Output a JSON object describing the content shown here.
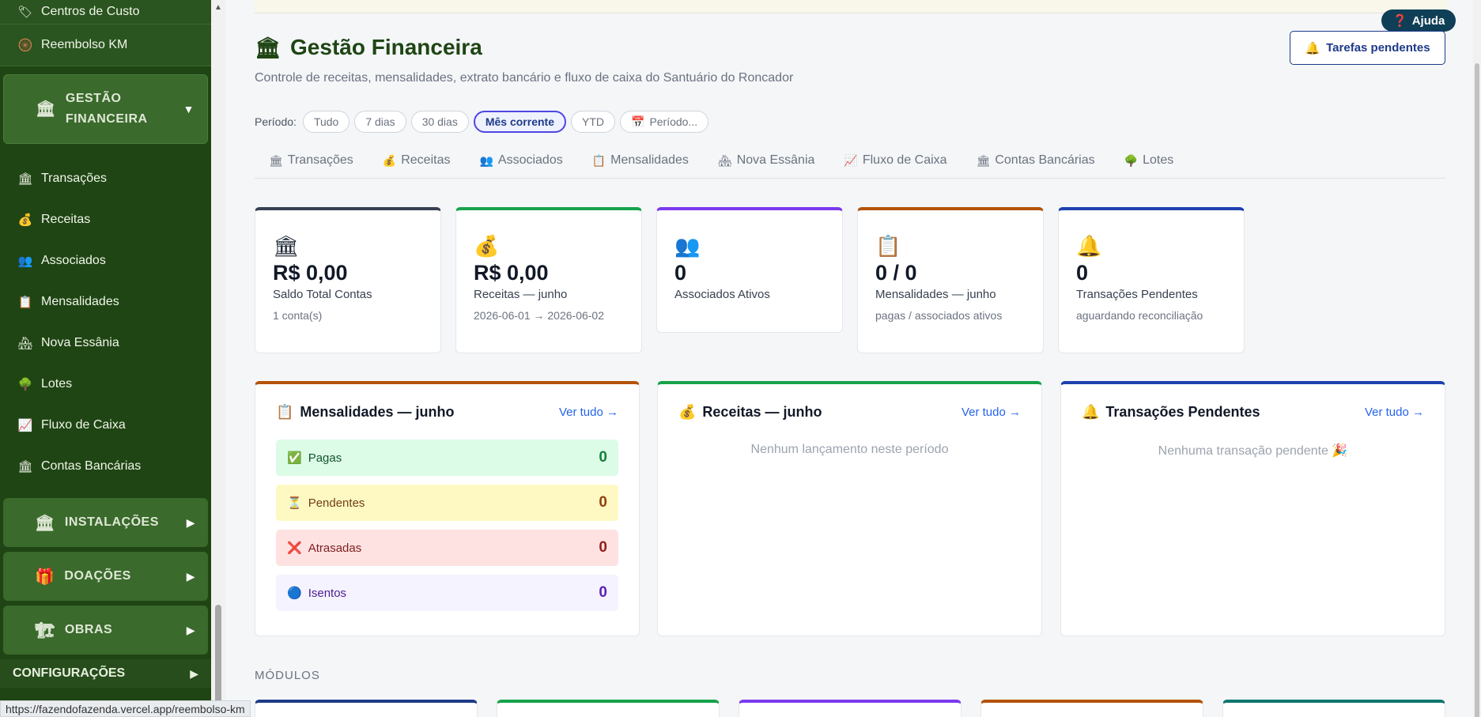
{
  "sidebar": {
    "top_items": [
      {
        "icon": "🏷",
        "label": "Centros de Custo"
      },
      {
        "icon": "🛞",
        "label": "Reembolso KM"
      }
    ],
    "group_gf": {
      "icon": "🏛",
      "label_line1": "GESTÃO",
      "label_line2": "FINANCEIRA",
      "arrow": "▼"
    },
    "items": [
      {
        "icon": "🏛",
        "label": "Transações"
      },
      {
        "icon": "💰",
        "label": "Receitas"
      },
      {
        "icon": "👥",
        "label": "Associados"
      },
      {
        "icon": "📋",
        "label": "Mensalidades"
      },
      {
        "icon": "🏘",
        "label": "Nova Essânia"
      },
      {
        "icon": "🌳",
        "label": "Lotes"
      },
      {
        "icon": "📈",
        "label": "Fluxo de Caixa"
      },
      {
        "icon": "🏛",
        "label": "Contas Bancárias"
      }
    ],
    "groups": [
      {
        "icon": "🏛",
        "label": "INSTALAÇÕES",
        "arrow": "▶"
      },
      {
        "icon": "🎁",
        "label": "DOAÇÕES",
        "arrow": "▶"
      },
      {
        "icon": "🏗",
        "label": "OBRAS",
        "arrow": "▶"
      }
    ],
    "config": {
      "label": "CONFIGURAÇÕES",
      "arrow": "▶"
    }
  },
  "status_url": "https://fazendofazenda.vercel.app/reembolso-km",
  "help": {
    "icon": "❓",
    "label": "Ajuda"
  },
  "header": {
    "icon": "🏛",
    "title": "Gestão Financeira",
    "subtitle": "Controle de receitas, mensalidades, extrato bancário e fluxo de caixa do Santuário do Roncador",
    "tasks_icon": "🔔",
    "tasks_label": "Tarefas pendentes"
  },
  "period": {
    "label": "Período:",
    "options": [
      "Tudo",
      "7 dias",
      "30 dias",
      "Mês corrente",
      "YTD"
    ],
    "active": "Mês corrente",
    "custom_icon": "📅",
    "custom_label": "Período..."
  },
  "tabs": [
    {
      "icon": "🏛",
      "label": "Transações"
    },
    {
      "icon": "💰",
      "label": "Receitas"
    },
    {
      "icon": "👥",
      "label": "Associados"
    },
    {
      "icon": "📋",
      "label": "Mensalidades"
    },
    {
      "icon": "🏘",
      "label": "Nova Essânia"
    },
    {
      "icon": "📈",
      "label": "Fluxo de Caixa"
    },
    {
      "icon": "🏛",
      "label": "Contas Bancárias"
    },
    {
      "icon": "🌳",
      "label": "Lotes"
    }
  ],
  "kpis": [
    {
      "icon": "🏛",
      "value": "R$ 0,00",
      "label": "Saldo Total Contas",
      "sub": "1 conta(s)",
      "color": "#374151"
    },
    {
      "icon": "💰",
      "value": "R$ 0,00",
      "label": "Receitas — junho",
      "sub": "2026-06-01 → 2026-06-02",
      "color": "#16a34a"
    },
    {
      "icon": "👥",
      "value": "0",
      "label": "Associados Ativos",
      "sub": "",
      "color": "#7c3aed"
    },
    {
      "icon": "📋",
      "value": "0 / 0",
      "label": "Mensalidades — junho",
      "sub": "pagas / associados ativos",
      "color": "#b45309"
    },
    {
      "icon": "🔔",
      "value": "0",
      "label": "Transações Pendentes",
      "sub": "aguardando reconciliação",
      "color": "#1e40af"
    }
  ],
  "panels": {
    "mensalidades": {
      "icon": "📋",
      "title": "Mensalidades — junho",
      "link": "Ver tudo →",
      "color": "#b45309",
      "rows": [
        {
          "icon": "✅",
          "label": "Pagas",
          "value": "0",
          "bg": "#dcfce7",
          "fg": "#14532d",
          "vfg": "#15803d"
        },
        {
          "icon": "⏳",
          "label": "Pendentes",
          "value": "0",
          "bg": "#fef9c3",
          "fg": "#713f12",
          "vfg": "#92400e"
        },
        {
          "icon": "❌",
          "label": "Atrasadas",
          "value": "0",
          "bg": "#fee2e2",
          "fg": "#7f1d1d",
          "vfg": "#991b1b"
        },
        {
          "icon": "🔵",
          "label": "Isentos",
          "value": "0",
          "bg": "#f5f3ff",
          "fg": "#4c1d95",
          "vfg": "#5b21b6"
        }
      ]
    },
    "receitas": {
      "icon": "💰",
      "title": "Receitas — junho",
      "link": "Ver tudo →",
      "empty": "Nenhum lançamento neste período",
      "color": "#16a34a"
    },
    "pendentes": {
      "icon": "🔔",
      "title": "Transações Pendentes",
      "link": "Ver tudo →",
      "empty": "Nenhuma transação pendente 🎉",
      "color": "#1e40af"
    }
  },
  "modules": {
    "label": "MÓDULOS",
    "colors": [
      "#1e3a8a",
      "#16a34a",
      "#7c3aed",
      "#b45309",
      "#0f766e"
    ]
  }
}
